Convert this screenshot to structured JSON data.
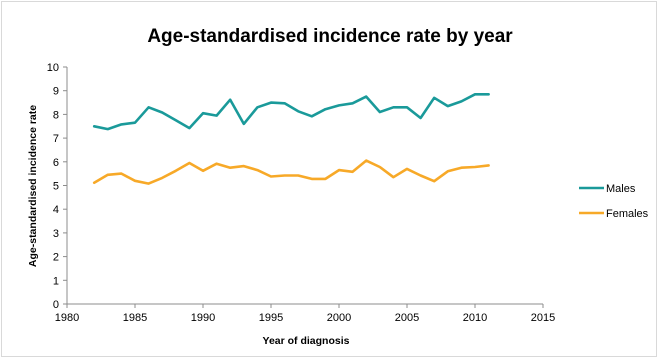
{
  "chart_data": {
    "type": "line",
    "title": "Age-standardised incidence rate by year",
    "xlabel": "Year of diagnosis",
    "ylabel": "Age-standardised incidence rate",
    "xlim": [
      1980,
      2015
    ],
    "ylim": [
      0,
      10
    ],
    "x_ticks": [
      "1980",
      "1985",
      "1990",
      "1995",
      "2000",
      "2005",
      "2010",
      "2015"
    ],
    "y_ticks": [
      "0",
      "1",
      "2",
      "3",
      "4",
      "5",
      "6",
      "7",
      "8",
      "9",
      "10"
    ],
    "grid": false,
    "legend_position": "right",
    "x": [
      1982,
      1983,
      1984,
      1985,
      1986,
      1987,
      1988,
      1989,
      1990,
      1991,
      1992,
      1993,
      1994,
      1995,
      1996,
      1997,
      1998,
      1999,
      2000,
      2001,
      2002,
      2003,
      2004,
      2005,
      2006,
      2007,
      2008,
      2009,
      2010,
      2011
    ],
    "series": [
      {
        "name": "Males",
        "color": "#1a9a9a",
        "values": [
          7.5,
          7.38,
          7.58,
          7.65,
          8.3,
          8.08,
          7.75,
          7.42,
          8.05,
          7.95,
          8.62,
          7.6,
          8.3,
          8.5,
          8.47,
          8.13,
          7.92,
          8.22,
          8.38,
          8.47,
          8.75,
          8.1,
          8.3,
          8.3,
          7.85,
          8.7,
          8.35,
          8.55,
          8.85,
          8.85
        ]
      },
      {
        "name": "Females",
        "color": "#f7a928",
        "values": [
          5.12,
          5.45,
          5.5,
          5.2,
          5.08,
          5.32,
          5.62,
          5.95,
          5.62,
          5.92,
          5.75,
          5.82,
          5.65,
          5.38,
          5.42,
          5.42,
          5.28,
          5.28,
          5.65,
          5.58,
          6.05,
          5.78,
          5.35,
          5.7,
          5.42,
          5.18,
          5.6,
          5.75,
          5.78,
          5.85
        ]
      }
    ]
  }
}
